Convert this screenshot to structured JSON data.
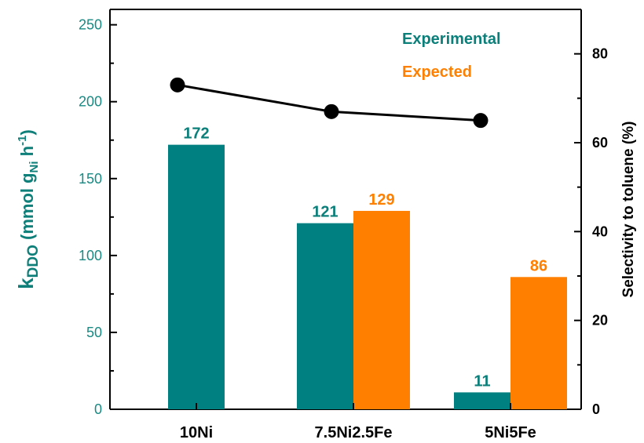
{
  "chart_data": {
    "type": "bar",
    "categories": [
      "10Ni",
      "7.5Ni2.5Fe",
      "5Ni5Fe"
    ],
    "series": [
      {
        "name": "Experimental",
        "color": "#008080",
        "values": [
          172,
          121,
          11
        ],
        "labels": [
          "172",
          "121",
          "11"
        ]
      },
      {
        "name": "Expected",
        "color": "#ff8000",
        "values": [
          null,
          129,
          86
        ],
        "labels": [
          "",
          "129",
          "86"
        ]
      }
    ],
    "line_series": {
      "axis": "right",
      "color": "#000000",
      "values": [
        73,
        67,
        65
      ]
    },
    "y_left": {
      "label_main": "k",
      "label_sub": "DDO",
      "label_rest": " (mmol g",
      "label_sub2": "Ni",
      "label_rest2": " h",
      "label_sup": "-1",
      "label_end": ")",
      "range": [
        0,
        260
      ],
      "ticks": [
        "0",
        "50",
        "100",
        "150",
        "200",
        "250"
      ],
      "tick_values": [
        0,
        50,
        100,
        150,
        200,
        250
      ]
    },
    "y_right": {
      "label": "Selectivity to toluene (%)",
      "range": [
        0,
        90
      ],
      "ticks": [
        "0",
        "20",
        "40",
        "60",
        "80"
      ],
      "tick_values": [
        0,
        20,
        40,
        60,
        80
      ]
    },
    "legend": {
      "position": "top-right",
      "entries": [
        "Experimental",
        "Expected"
      ],
      "colors": [
        "#008080",
        "#ff8000"
      ]
    },
    "grid": false
  }
}
